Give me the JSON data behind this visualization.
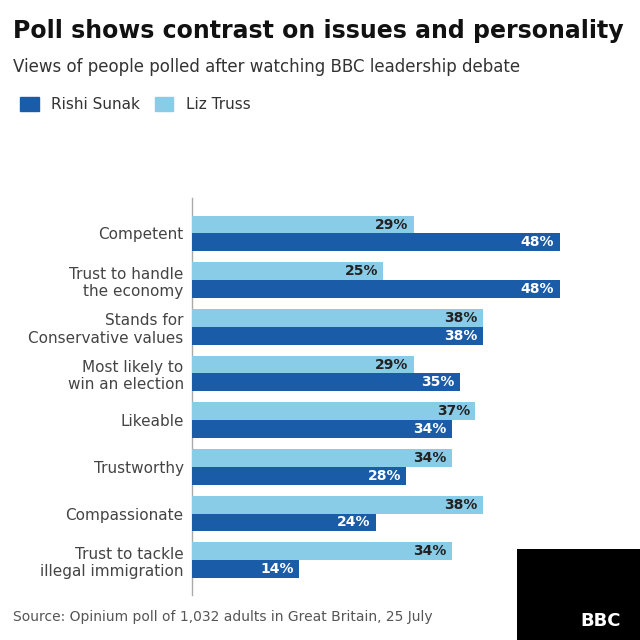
{
  "title": "Poll shows contrast on issues and personality",
  "subtitle": "Views of people polled after watching BBC leadership debate",
  "source": "Source: Opinium poll of 1,032 adults in Great Britain, 25 July",
  "categories": [
    "Competent",
    "Trust to handle\nthe economy",
    "Stands for\nConservative values",
    "Most likely to\nwin an election",
    "Likeable",
    "Trustworthy",
    "Compassionate",
    "Trust to tackle\nillegal immigration"
  ],
  "rishi_values": [
    48,
    48,
    38,
    35,
    34,
    28,
    24,
    14
  ],
  "liz_values": [
    29,
    25,
    38,
    29,
    37,
    34,
    38,
    34
  ],
  "rishi_color": "#1a5ca8",
  "liz_color": "#89cce8",
  "background_color": "#ffffff",
  "title_fontsize": 17,
  "subtitle_fontsize": 12,
  "label_fontsize": 11,
  "bar_label_fontsize": 10,
  "legend_fontsize": 11,
  "source_fontsize": 10,
  "bar_height": 0.38,
  "xlim": [
    0,
    56
  ]
}
